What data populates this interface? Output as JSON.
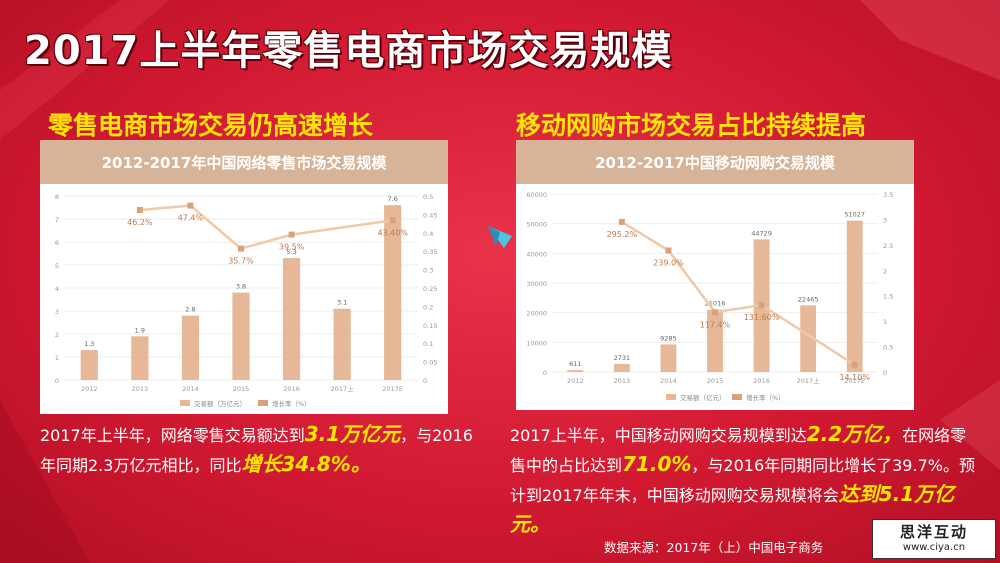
{
  "title": "2017上半年零售电商市场交易规模",
  "left": {
    "subtitle": "零售电商市场交易仍高速增长",
    "text_parts": [
      "2017年上半年，网络零售交易额达到",
      "3.1万亿元",
      "，与2016年同期2.3万亿元相比，同比",
      "增长34.8%。"
    ]
  },
  "right": {
    "subtitle": "移动网购市场交易占比持续提高",
    "text_parts": [
      "2017上半年，中国移动网购交易规模到达",
      "2.2万亿，",
      "在网络零售中的占比达到",
      "71.0%",
      "，与2016年同期同比增长了39.7%。预计到2017年年末，中国移动网购交易规模将会",
      "达到5.1万亿元。"
    ]
  },
  "source": "数据来源：2017年（上）中国电子商务",
  "watermark": {
    "logo": "思洋互动",
    "url": "www.ciya.cn"
  },
  "colors": {
    "bar": "#e6b898",
    "line": "#f0c9a8",
    "bg": "#d21a32",
    "highlight": "#ffe600",
    "panel_head": "#d7b498"
  },
  "chart_data": [
    {
      "type": "bar",
      "title": "2012-2017年中国网络零售市场交易规模",
      "categories": [
        "2012",
        "2013",
        "2014",
        "2015",
        "2016",
        "2017上",
        "2017E"
      ],
      "series": [
        {
          "name": "交易额（万亿元）",
          "type": "bar",
          "axis": "left",
          "values": [
            1.3,
            1.9,
            2.8,
            3.8,
            5.3,
            3.1,
            7.6
          ],
          "labels": [
            "1.3",
            "1.9",
            "2.8",
            "3.8",
            "5.3",
            "3.1",
            "7.6"
          ]
        },
        {
          "name": "增长率（%）",
          "type": "line",
          "axis": "right",
          "values": [
            null,
            0.462,
            0.474,
            0.357,
            0.395,
            null,
            0.434
          ],
          "labels": [
            "",
            "46.2%",
            "47.4%",
            "35.7%",
            "39.5%",
            "",
            "43.40%"
          ]
        }
      ],
      "y_left": {
        "min": 0,
        "max": 8,
        "ticks": [
          "0",
          "1",
          "2",
          "3",
          "4",
          "5",
          "6",
          "7",
          "8"
        ]
      },
      "y_right": {
        "min": 0,
        "max": 0.5,
        "ticks": [
          "0",
          "0.05",
          "0.1",
          "0.15",
          "0.2",
          "0.25",
          "0.3",
          "0.35",
          "0.4",
          "0.45",
          "0.5"
        ]
      },
      "legend_position": "bottom",
      "grid": true
    },
    {
      "type": "bar",
      "title": "2012-2017中国移动网购交易规模",
      "categories": [
        "2012",
        "2013",
        "2014",
        "2015",
        "2016",
        "2017上",
        "2017E"
      ],
      "series": [
        {
          "name": "交易额（亿元）",
          "type": "bar",
          "axis": "left",
          "values": [
            611,
            2731,
            9285,
            21016,
            44729,
            22465,
            51027
          ],
          "labels": [
            "611",
            "2731",
            "9285",
            "21016",
            "44729",
            "22465",
            "51027"
          ]
        },
        {
          "name": "增长率（%）",
          "type": "line",
          "axis": "right",
          "values": [
            null,
            2.952,
            2.39,
            1.174,
            1.316,
            null,
            0.141
          ],
          "labels": [
            "",
            "295.2%",
            "239.0%",
            "117.4%",
            "131.60%",
            "",
            "14.10%"
          ]
        }
      ],
      "y_left": {
        "min": 0,
        "max": 60000,
        "ticks": [
          "0",
          "10000",
          "20000",
          "30000",
          "40000",
          "50000",
          "60000"
        ]
      },
      "y_right": {
        "min": 0,
        "max": 3.5,
        "ticks": [
          "0",
          "0.5",
          "1",
          "1.5",
          "2",
          "2.5",
          "3",
          "3.5"
        ]
      },
      "legend_position": "bottom",
      "grid": true
    }
  ]
}
